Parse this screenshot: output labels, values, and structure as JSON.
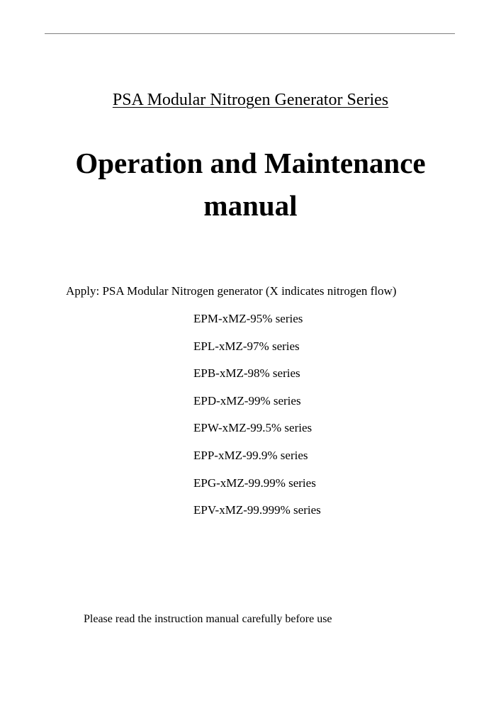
{
  "header": {
    "subtitle": "PSA Modular Nitrogen Generator Series"
  },
  "title": {
    "line1": "Operation and Maintenance",
    "line2": "manual"
  },
  "apply": "Apply: PSA Modular Nitrogen generator (X indicates nitrogen flow)",
  "series": [
    "EPM-xMZ-95% series",
    "EPL-xMZ-97% series",
    "EPB-xMZ-98% series",
    "EPD-xMZ-99% series",
    "EPW-xMZ-99.5% series",
    "EPP-xMZ-99.9% series",
    "EPG-xMZ-99.99% series",
    "EPV-xMZ-99.999% series"
  ],
  "note": "Please read the instruction manual carefully before use"
}
